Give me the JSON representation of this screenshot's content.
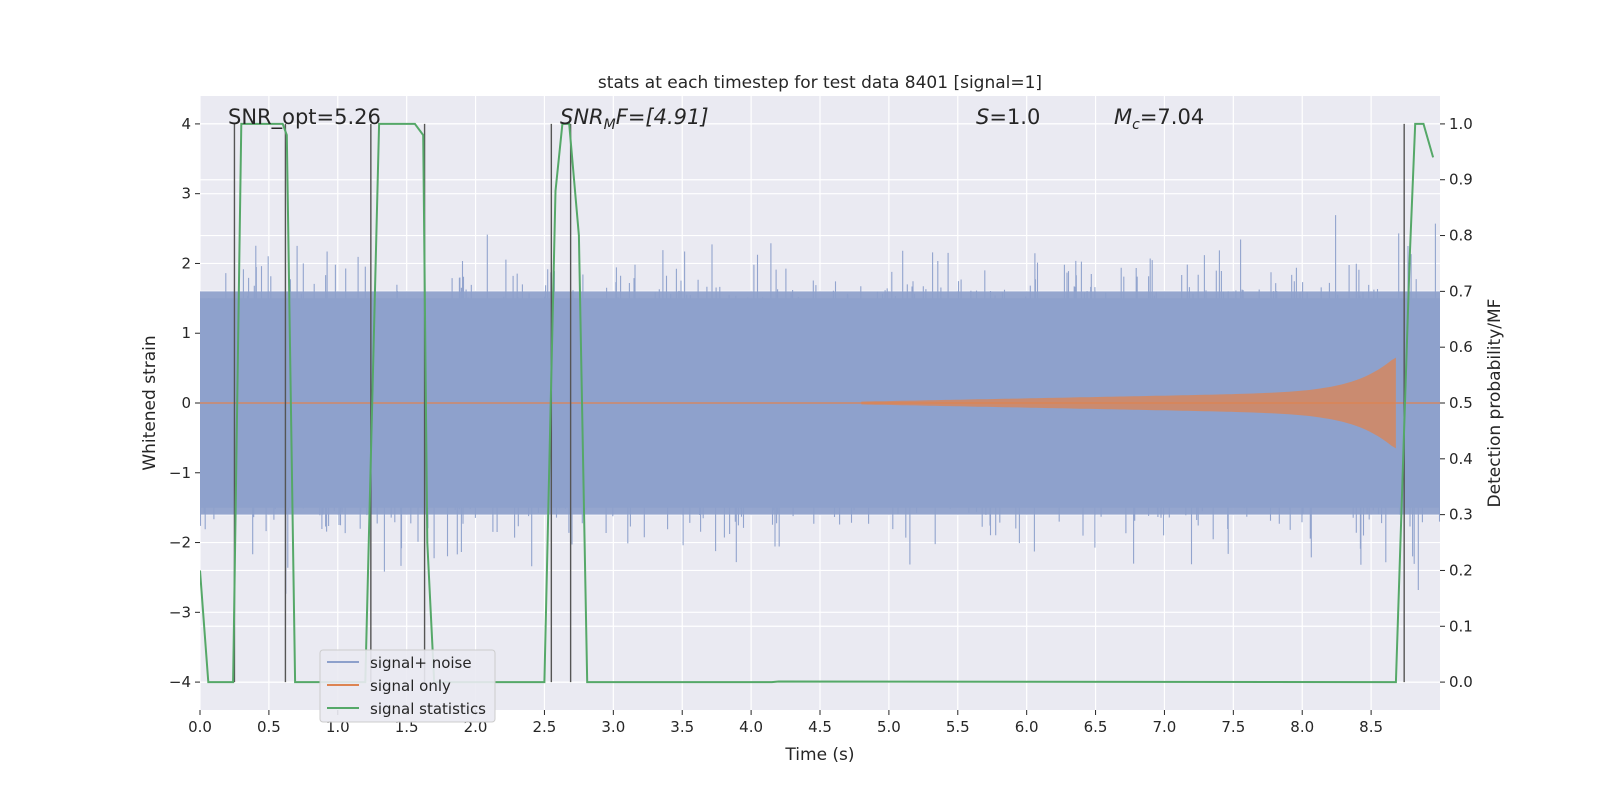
{
  "chart_data": {
    "type": "line",
    "title": "stats at each timestep for test data 8401 [signal=1]",
    "xlabel": "Time (s)",
    "ylabel_left": "Whitened strain",
    "ylabel_right": "Detection probability/MF",
    "xlim": [
      0.0,
      9.0
    ],
    "ylim_left": [
      -4.4,
      4.4
    ],
    "ylim_right": [
      -0.05,
      1.05
    ],
    "x_ticks": [
      "0.0",
      "0.5",
      "1.0",
      "1.5",
      "2.0",
      "2.5",
      "3.0",
      "3.5",
      "4.0",
      "4.5",
      "5.0",
      "5.5",
      "6.0",
      "6.5",
      "7.0",
      "7.5",
      "8.0",
      "8.5"
    ],
    "y_ticks_left": [
      "−4",
      "−3",
      "−2",
      "−1",
      "0",
      "1",
      "2",
      "3",
      "4"
    ],
    "y_ticks_right": [
      "0.0",
      "0.1",
      "0.2",
      "0.3",
      "0.4",
      "0.5",
      "0.6",
      "0.7",
      "0.8",
      "0.9",
      "1.0"
    ],
    "grid": true,
    "legend_position": "lower-left",
    "annotations": {
      "snr_opt": "SNR_opt=5.26",
      "snr_mf_name": "SNR",
      "snr_mf_sub": "M",
      "snr_mf_rest": "F=[4.91]",
      "s_name": "S",
      "s_rest": "=1.0",
      "mc_name": "M",
      "mc_sub": "c",
      "mc_rest": "=7.04"
    },
    "series": [
      {
        "name": "signal+ noise",
        "color": "#8da0cb",
        "description_of_shape": "whitened noise, core amplitude about ±1.6 with spikes up to about ±3.7",
        "typical_amplitude": 1.6,
        "peak_amplitude": 3.7
      },
      {
        "name": "signal only",
        "color": "#dd8452",
        "chirp_start": 4.8,
        "chirp_end": 8.68,
        "chirp_peak_amplitude": 0.65
      },
      {
        "name": "signal statistics",
        "color": "#55a868",
        "points": [
          [
            0.0,
            0.2
          ],
          [
            0.06,
            0.0
          ],
          [
            0.24,
            0.0
          ],
          [
            0.3,
            1.0
          ],
          [
            0.6,
            1.0
          ],
          [
            0.63,
            0.98
          ],
          [
            0.69,
            0.0
          ],
          [
            1.2,
            0.0
          ],
          [
            1.3,
            1.0
          ],
          [
            1.56,
            1.0
          ],
          [
            1.62,
            0.98
          ],
          [
            1.65,
            0.25
          ],
          [
            1.7,
            0.0
          ],
          [
            2.5,
            0.0
          ],
          [
            2.58,
            0.88
          ],
          [
            2.63,
            1.0
          ],
          [
            2.68,
            1.0
          ],
          [
            2.75,
            0.8
          ],
          [
            2.81,
            0.0
          ],
          [
            4.15,
            0.0
          ],
          [
            4.2,
            0.001
          ],
          [
            8.68,
            0.0
          ],
          [
            8.78,
            0.76
          ],
          [
            8.82,
            1.0
          ],
          [
            8.88,
            1.0
          ],
          [
            8.95,
            0.94
          ]
        ]
      }
    ],
    "vertical_markers": [
      0.25,
      0.62,
      1.24,
      1.63,
      2.55,
      2.69,
      8.74
    ]
  }
}
